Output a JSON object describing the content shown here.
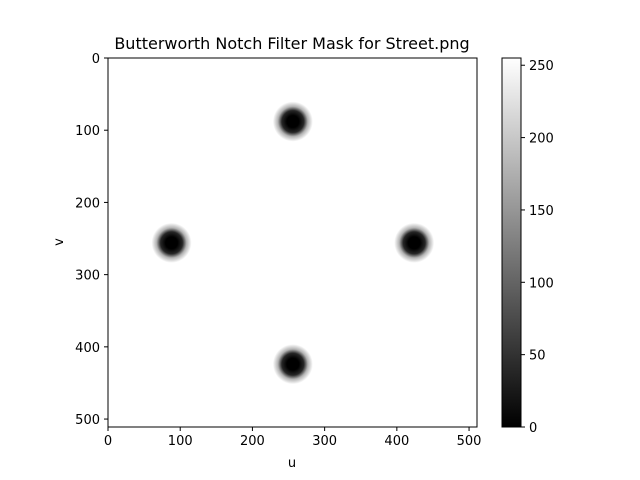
{
  "chart_data": [
    {
      "type": "heatmap",
      "title": "Butterworth Notch Filter Mask for Street.png",
      "xlabel": "u",
      "ylabel": "v",
      "xlim": [
        0,
        511
      ],
      "ylim": [
        511,
        0
      ],
      "xticks": [
        0,
        100,
        200,
        300,
        400,
        500
      ],
      "yticks": [
        0,
        100,
        200,
        300,
        400,
        500
      ],
      "colormap": "gray",
      "value_range": [
        0,
        255
      ],
      "background_value": 255,
      "notches": [
        {
          "u": 256,
          "v": 88,
          "value": 0
        },
        {
          "u": 88,
          "v": 256,
          "value": 0
        },
        {
          "u": 424,
          "v": 256,
          "value": 0
        },
        {
          "u": 256,
          "v": 424,
          "value": 0
        }
      ],
      "colorbar": {
        "min": 0,
        "max": 255,
        "ticks": [
          0,
          50,
          100,
          150,
          200,
          250
        ]
      }
    }
  ]
}
